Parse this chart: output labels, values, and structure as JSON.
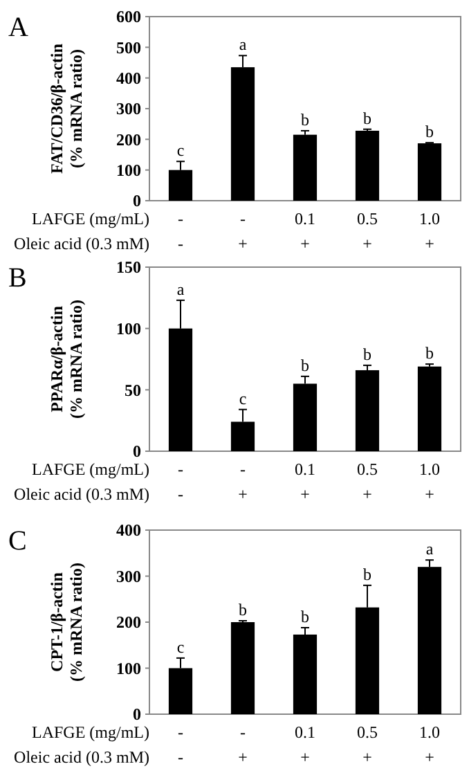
{
  "chart_data": [
    {
      "type": "bar",
      "title": "A",
      "ylabel": "FAT/CD36/β-actin\n(% mRNA ratio)",
      "xlabel": "LAFGE (mg/mL)",
      "categories": [
        "-",
        "-",
        "0.1",
        "0.5",
        "1.0"
      ],
      "values": [
        100,
        435,
        215,
        228,
        187
      ],
      "errors": [
        28,
        38,
        13,
        5,
        2
      ],
      "value_labels": [
        "c",
        "a",
        "b",
        "b",
        "b"
      ],
      "color": "#000000",
      "ylim": [
        0,
        600
      ],
      "yticks": [
        0,
        100,
        200,
        300,
        400,
        500,
        600
      ],
      "annotations": [
        "Oleic acid (0.3 mM)",
        "-",
        "+",
        "+",
        "+",
        "+"
      ]
    },
    {
      "type": "bar",
      "title": "B",
      "ylabel": "PPARα/β-actin\n(% mRNA ratio)",
      "xlabel": "LAFGE (mg/mL)",
      "categories": [
        "-",
        "-",
        "0.1",
        "0.5",
        "1.0"
      ],
      "values": [
        100,
        24,
        55,
        66,
        69
      ],
      "errors": [
        23,
        10,
        6,
        4,
        2
      ],
      "value_labels": [
        "a",
        "c",
        "b",
        "b",
        "b"
      ],
      "color": "#000000",
      "ylim": [
        0,
        150
      ],
      "yticks": [
        0,
        50,
        100,
        150
      ],
      "annotations": [
        "Oleic acid (0.3 mM)",
        "-",
        "+",
        "+",
        "+",
        "+"
      ]
    },
    {
      "type": "bar",
      "title": "C",
      "ylabel": "CPT-1/β-actin\n(% mRNA ratio)",
      "xlabel": "LAFGE (mg/mL)",
      "categories": [
        "-",
        "-",
        "0.1",
        "0.5",
        "1.0"
      ],
      "values": [
        100,
        200,
        173,
        232,
        320
      ],
      "errors": [
        22,
        3,
        15,
        48,
        15
      ],
      "value_labels": [
        "c",
        "b",
        "b",
        "b",
        "a"
      ],
      "color": "#000000",
      "ylim": [
        0,
        400
      ],
      "yticks": [
        0,
        100,
        200,
        300,
        400
      ],
      "annotations": [
        "Oleic acid (0.3 mM)",
        "-",
        "+",
        "+",
        "+",
        "+"
      ]
    }
  ]
}
